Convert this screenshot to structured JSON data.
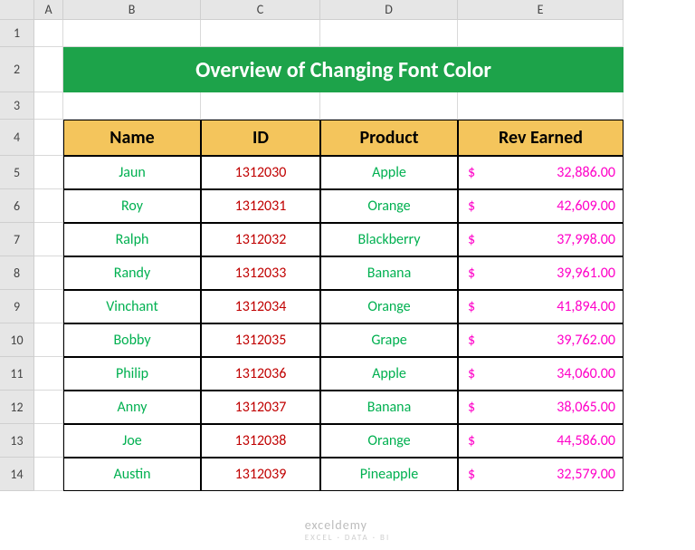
{
  "columns": [
    "A",
    "B",
    "C",
    "D",
    "E"
  ],
  "rows": [
    "1",
    "2",
    "3",
    "4",
    "5",
    "6",
    "7",
    "8",
    "9",
    "10",
    "11",
    "12",
    "13",
    "14"
  ],
  "title": "Overview of Changing Font Color",
  "headers": {
    "name": "Name",
    "id": "ID",
    "product": "Product",
    "rev": "Rev Earned"
  },
  "data": [
    {
      "name": "Jaun",
      "id": "1312030",
      "product": "Apple",
      "rev": "32,886.00"
    },
    {
      "name": "Roy",
      "id": "1312031",
      "product": "Orange",
      "rev": "42,609.00"
    },
    {
      "name": "Ralph",
      "id": "1312032",
      "product": "Blackberry",
      "rev": "37,998.00"
    },
    {
      "name": "Randy",
      "id": "1312033",
      "product": "Banana",
      "rev": "39,961.00"
    },
    {
      "name": "Vinchant",
      "id": "1312034",
      "product": "Orange",
      "rev": "41,894.00"
    },
    {
      "name": "Bobby",
      "id": "1312035",
      "product": "Grape",
      "rev": "39,762.00"
    },
    {
      "name": "Philip",
      "id": "1312036",
      "product": "Apple",
      "rev": "34,060.00"
    },
    {
      "name": "Anny",
      "id": "1312037",
      "product": "Banana",
      "rev": "38,065.00"
    },
    {
      "name": "Joe",
      "id": "1312038",
      "product": "Orange",
      "rev": "44,586.00"
    },
    {
      "name": "Austin",
      "id": "1312039",
      "product": "Pineapple",
      "rev": "32,579.00"
    }
  ],
  "currency": "$",
  "watermark": {
    "main": "exceldemy",
    "sub": "EXCEL · DATA · BI"
  },
  "style": {
    "title_bg": "#1da34a",
    "title_color": "#ffffff",
    "header_bg": "#f4c55c",
    "name_color": "#00b050",
    "id_color": "#c00000",
    "product_color": "#00b050",
    "rev_color": "#ff00c8",
    "grid_border": "#d9d9d9",
    "data_border": "#000000"
  }
}
